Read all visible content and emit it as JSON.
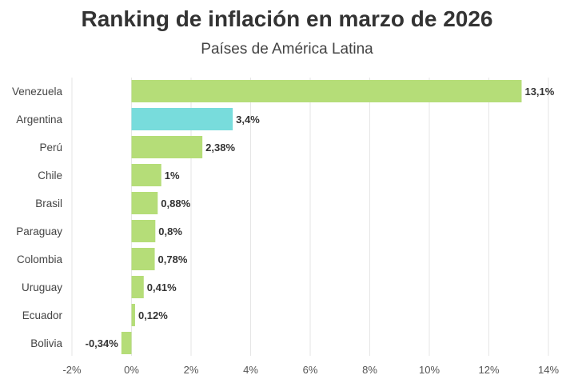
{
  "chart_data": {
    "type": "bar",
    "orientation": "horizontal",
    "title": "Ranking de inflación en marzo de 2026",
    "subtitle": "Países de América Latina",
    "categories": [
      "Venezuela",
      "Argentina",
      "Perú",
      "Chile",
      "Brasil",
      "Paraguay",
      "Colombia",
      "Uruguay",
      "Ecuador",
      "Bolivia"
    ],
    "values": [
      13.1,
      3.4,
      2.38,
      1,
      0.88,
      0.8,
      0.78,
      0.41,
      0.12,
      -0.34
    ],
    "data_labels": [
      "13,1%",
      "3,4%",
      "2,38%",
      "1%",
      "0,88%",
      "0,8%",
      "0,78%",
      "0,41%",
      "0,12%",
      "-0,34%"
    ],
    "highlight": "Argentina",
    "xlim": [
      -2,
      14
    ],
    "xticks": [
      -2,
      0,
      2,
      4,
      6,
      8,
      10,
      12,
      14
    ],
    "xtick_labels": [
      "-2%",
      "0%",
      "2%",
      "4%",
      "6%",
      "8%",
      "10%",
      "12%",
      "14%"
    ],
    "grid": true,
    "colors": {
      "default": "#b5dd78",
      "highlight": "#78dcdc",
      "grid": "#e6e6e6",
      "text": "#333333"
    }
  }
}
